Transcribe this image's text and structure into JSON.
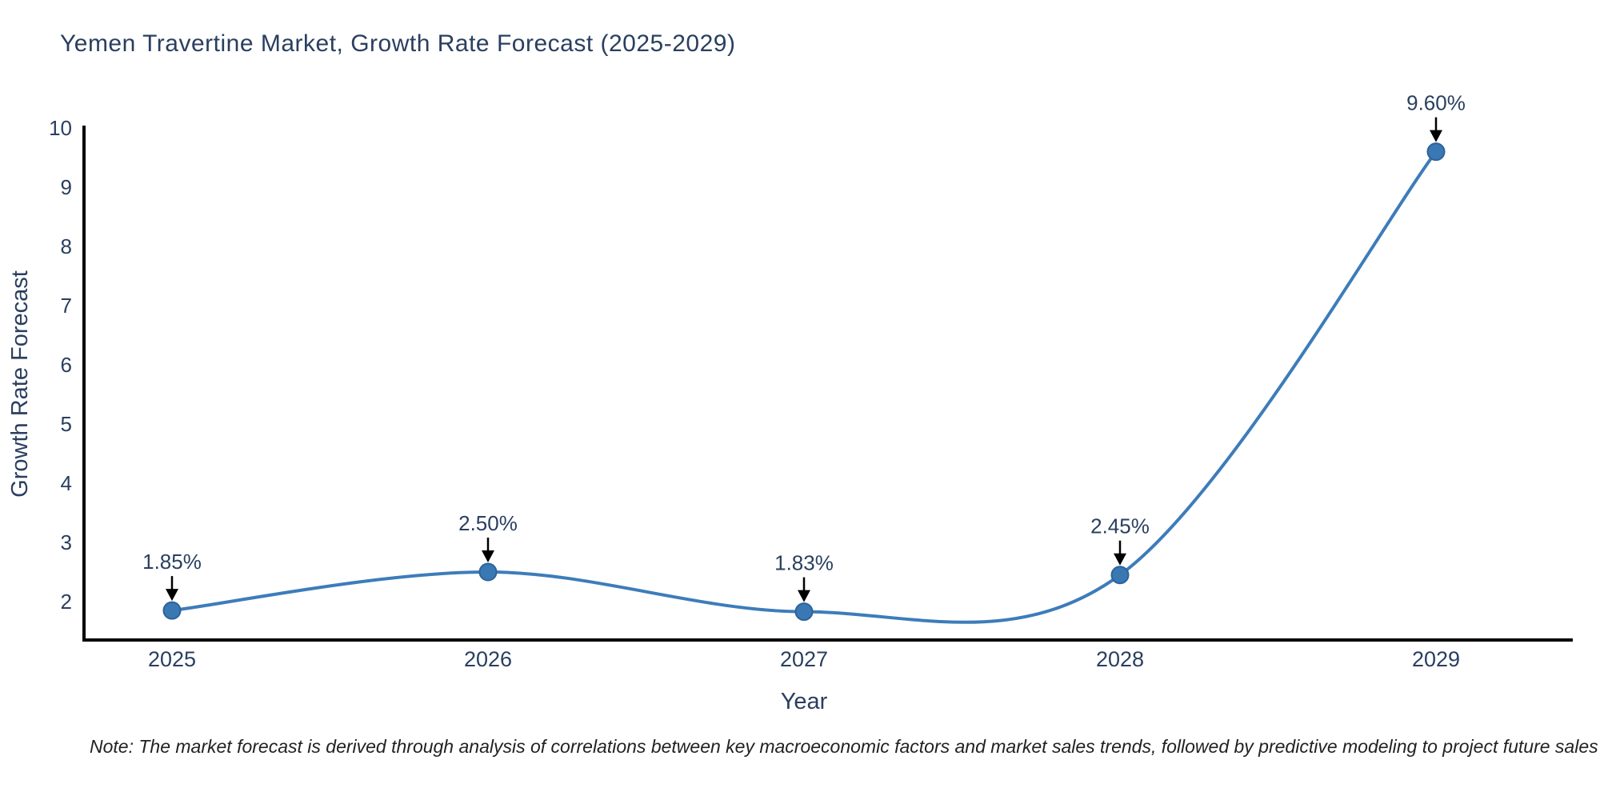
{
  "title": "Yemen Travertine Market, Growth Rate Forecast (2025-2029)",
  "note": "Note: The market forecast is derived through analysis of correlations between key macroeconomic factors and market sales trends, followed by predictive modeling to project future sales",
  "chart_data": {
    "type": "line",
    "title": "Yemen Travertine Market, Growth Rate Forecast (2025-2029)",
    "categories": [
      "2025",
      "2026",
      "2027",
      "2028",
      "2029"
    ],
    "x": [
      2025,
      2026,
      2027,
      2028,
      2029
    ],
    "values": [
      1.85,
      2.5,
      1.83,
      2.45,
      9.6
    ],
    "point_labels": [
      "1.85%",
      "2.50%",
      "1.83%",
      "2.45%",
      "9.60%"
    ],
    "xlabel": "Year",
    "ylabel": "Growth Rate Forecast",
    "yticks": [
      2,
      3,
      4,
      5,
      6,
      7,
      8,
      9,
      10
    ],
    "ylim": [
      1.35,
      10.05
    ],
    "xlim": [
      2024.72,
      2029.28
    ],
    "grid": false,
    "legend": "none",
    "line_shape": "spline",
    "marker": "circle",
    "annotation_arrows": "down",
    "colors": {
      "line": "#3d7cba",
      "marker_fill": "#3a78b4",
      "marker_edge": "#2d6398",
      "axis_line": "#000000",
      "tick_text": "#2a3f5f",
      "axis_title_text": "#2a3f5f",
      "annotation_text": "#2a3f5f",
      "annotation_arrow": "#000000",
      "title_text": "#2a3f5f",
      "note_text": "#222222",
      "background": "#ffffff"
    }
  }
}
